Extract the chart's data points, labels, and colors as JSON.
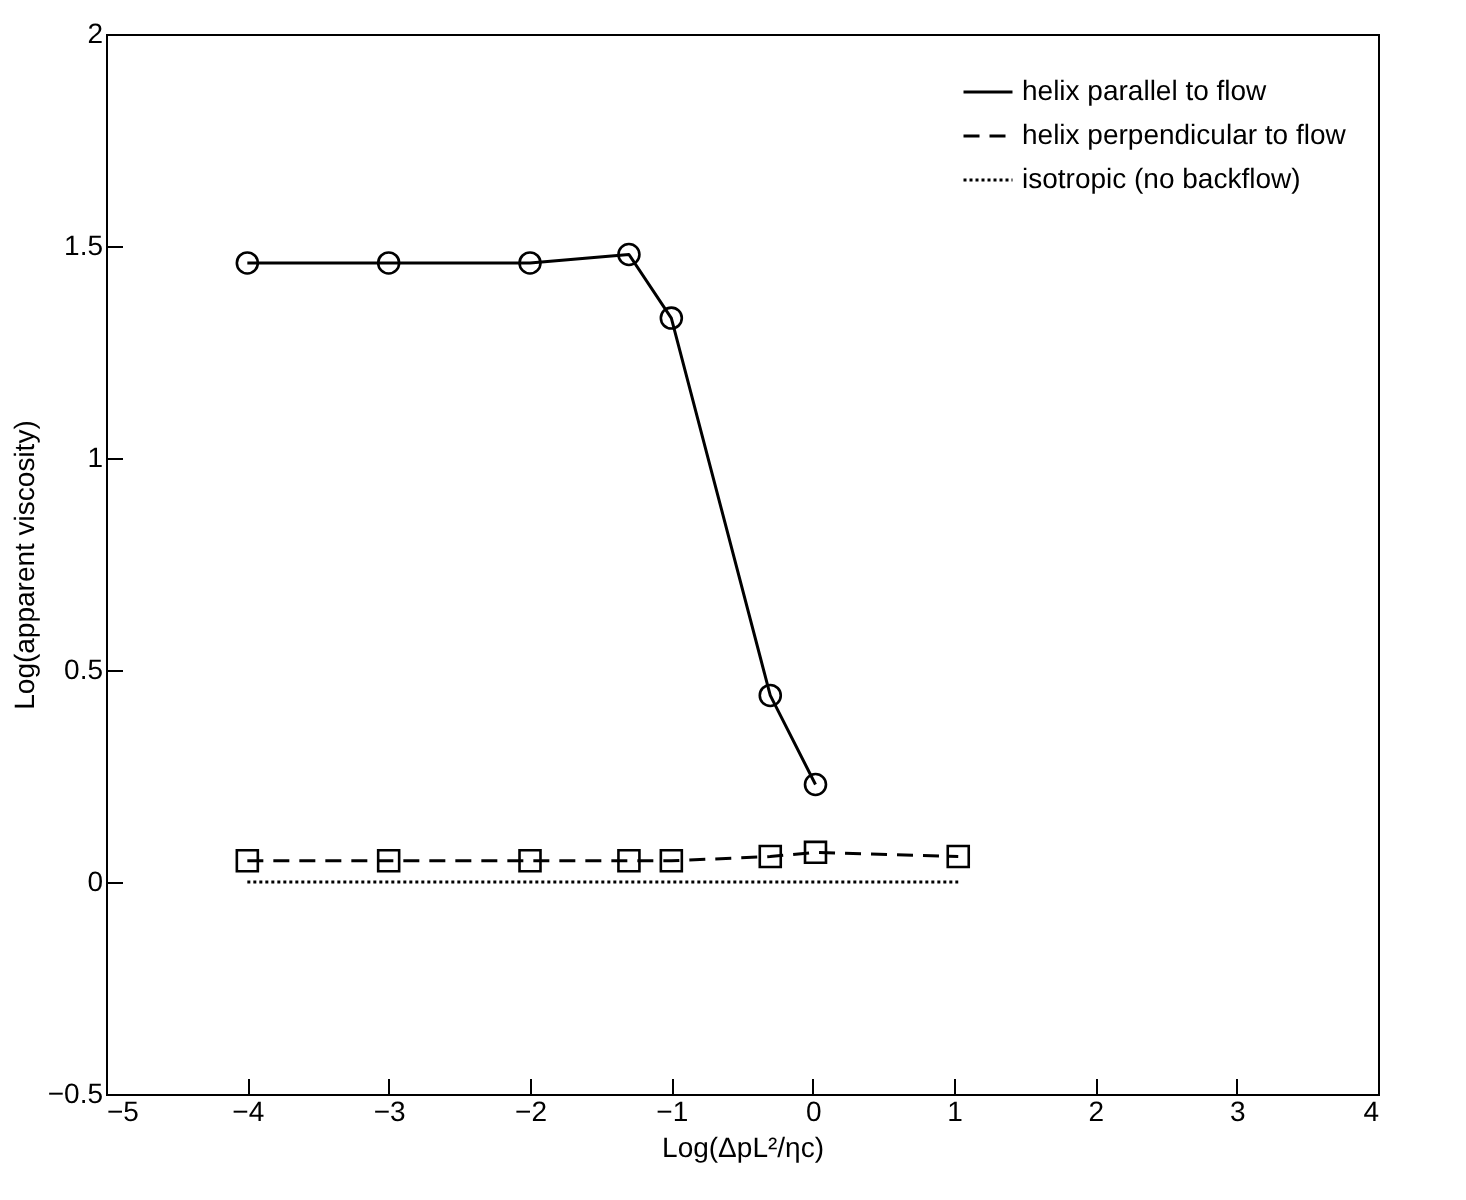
{
  "chart_data": {
    "type": "line",
    "xlabel": "Log(ΔpL²/ηc)",
    "ylabel": "Log(apparent viscosity)",
    "xlim": [
      -5,
      4
    ],
    "xticks": [
      -5,
      -4,
      -3,
      -2,
      -1,
      0,
      1,
      2,
      3,
      4
    ],
    "ylim": [
      -0.5,
      2
    ],
    "yticks": [
      -0.5,
      0,
      0.5,
      1,
      1.5,
      2
    ],
    "grid": false,
    "legend": "top right",
    "series": [
      {
        "name": "helix parallel to flow",
        "color": "#000000",
        "marker": "circle",
        "line_style": "solid",
        "x": [
          -4,
          -3,
          -2,
          -1.3,
          -1,
          -0.3,
          0.02
        ],
        "values": [
          1.46,
          1.46,
          1.46,
          1.48,
          1.33,
          0.44,
          0.23
        ]
      },
      {
        "name": "helix perpendicular to flow",
        "color": "#000000",
        "marker": "square",
        "line_style": "dashed",
        "x": [
          -4,
          -3,
          -2,
          -1.3,
          -1,
          -0.3,
          0.02,
          1.03
        ],
        "values": [
          0.05,
          0.05,
          0.05,
          0.05,
          0.05,
          0.06,
          0.07,
          0.06
        ]
      },
      {
        "name": "isotropic (no backflow)",
        "color": "#000000",
        "marker": "none",
        "line_style": "dotted",
        "x": [
          -4,
          1.03
        ],
        "values": [
          0,
          0
        ]
      }
    ]
  }
}
